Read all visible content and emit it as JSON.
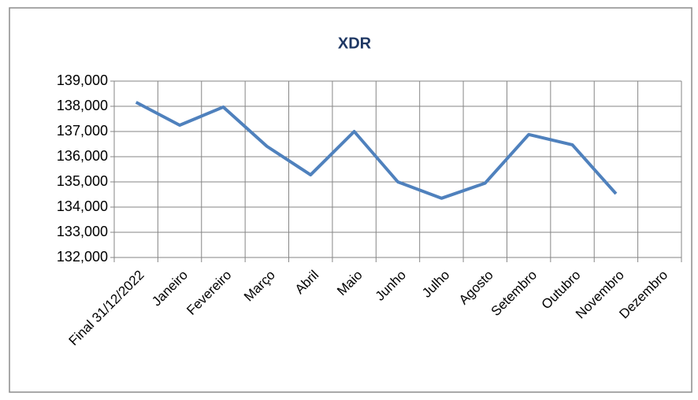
{
  "chart_data": {
    "type": "line",
    "title": "XDR",
    "categories": [
      "Final 31/12/2022",
      "Janeiro",
      "Fevereiro",
      "Março",
      "Abril",
      "Maio",
      "Junho",
      "Julho",
      "Agosto",
      "Setembro",
      "Outubro",
      "Novembro",
      "Dezembro"
    ],
    "values": [
      138160,
      137250,
      137970,
      136410,
      135280,
      137000,
      135000,
      134350,
      134950,
      136880,
      136470,
      134530,
      null
    ],
    "color": "#4f81bd",
    "ylim": [
      132000,
      139000
    ],
    "yticks": [
      {
        "value": 132000,
        "label": "132,000"
      },
      {
        "value": 133000,
        "label": "133,000"
      },
      {
        "value": 134000,
        "label": "134,000"
      },
      {
        "value": 135000,
        "label": "135,000"
      },
      {
        "value": 136000,
        "label": "136,000"
      },
      {
        "value": 137000,
        "label": "137,000"
      },
      {
        "value": 138000,
        "label": "138,000"
      },
      {
        "value": 139000,
        "label": "139,000"
      }
    ],
    "grid": true
  }
}
